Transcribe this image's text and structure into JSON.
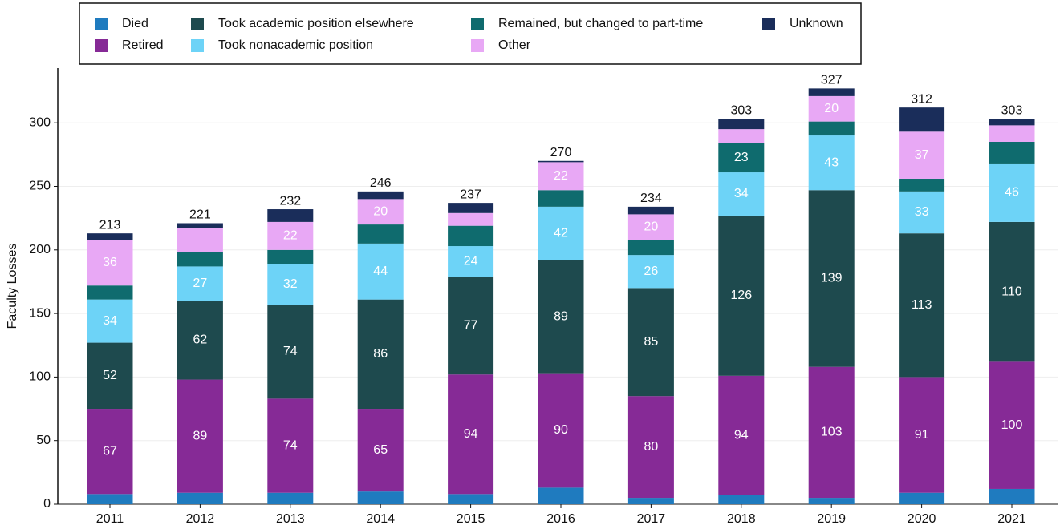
{
  "chart_data": {
    "type": "stacked_bar",
    "y_label": "Faculty Losses",
    "categories": [
      "2011",
      "2012",
      "2013",
      "2014",
      "2015",
      "2016",
      "2017",
      "2018",
      "2019",
      "2020",
      "2021"
    ],
    "series": [
      {
        "name": "Died",
        "color": "#1f7bbf",
        "values": [
          8,
          9,
          9,
          10,
          8,
          13,
          5,
          7,
          5,
          9,
          12
        ]
      },
      {
        "name": "Retired",
        "color": "#862a96",
        "values": [
          67,
          89,
          74,
          65,
          94,
          90,
          80,
          94,
          103,
          91,
          100
        ]
      },
      {
        "name": "Took academic position elsewhere",
        "color": "#1e4a4e",
        "values": [
          52,
          62,
          74,
          86,
          77,
          89,
          85,
          126,
          139,
          113,
          110
        ]
      },
      {
        "name": "Took nonacademic position",
        "color": "#6dd3f7",
        "values": [
          34,
          27,
          32,
          44,
          24,
          42,
          26,
          34,
          43,
          33,
          46
        ]
      },
      {
        "name": "Remained, but changed to part-time",
        "color": "#0f6b6e",
        "values": [
          11,
          11,
          11,
          15,
          16,
          13,
          12,
          23,
          11,
          10,
          17
        ]
      },
      {
        "name": "Other",
        "color": "#e8a8f5",
        "values": [
          36,
          19,
          22,
          20,
          10,
          22,
          20,
          11,
          20,
          37,
          13
        ]
      },
      {
        "name": "Unknown",
        "color": "#1a2d5a",
        "values": [
          5,
          4,
          10,
          6,
          8,
          1,
          6,
          8,
          6,
          19,
          5
        ]
      }
    ],
    "totals": [
      213,
      221,
      232,
      246,
      237,
      270,
      234,
      303,
      327,
      312,
      303
    ],
    "ylim": [
      0,
      343
    ],
    "yticks": [
      0,
      50,
      100,
      150,
      200,
      250,
      300
    ],
    "grid": true
  }
}
